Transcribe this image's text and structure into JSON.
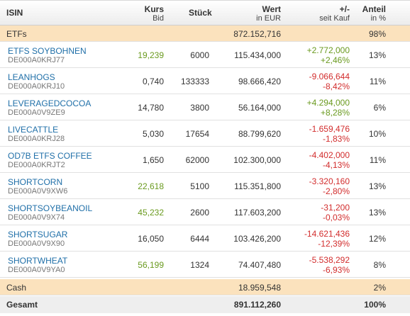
{
  "header": {
    "isin": "ISIN",
    "kurs": "Kurs",
    "kurs_sub": "Bid",
    "stueck": "Stück",
    "wert": "Wert",
    "wert_sub": "in EUR",
    "pm": "+/-",
    "pm_sub": "seit Kauf",
    "anteil": "Anteil",
    "anteil_sub": "in %"
  },
  "etf_section": {
    "label": "ETFs",
    "wert": "872.152,716",
    "anteil": "98%"
  },
  "rows": [
    {
      "name": "ETFS SOYBOHNEN",
      "isin": "DE000A0KRJ77",
      "kurs": "19,239",
      "kurs_trend": "pos",
      "stueck": "6000",
      "wert": "115.434,000",
      "pm_abs": "+2.772,000",
      "pm_pct": "+2,46%",
      "pm_trend": "pos",
      "anteil": "13%"
    },
    {
      "name": "LEANHOGS",
      "isin": "DE000A0KRJ10",
      "kurs": "0,740",
      "kurs_trend": "none",
      "stueck": "133333",
      "wert": "98.666,420",
      "pm_abs": "-9.066,644",
      "pm_pct": "-8,42%",
      "pm_trend": "neg",
      "anteil": "11%"
    },
    {
      "name": "LEVERAGEDCOCOA",
      "isin": "DE000A0V9ZE9",
      "kurs": "14,780",
      "kurs_trend": "none",
      "stueck": "3800",
      "wert": "56.164,000",
      "pm_abs": "+4.294,000",
      "pm_pct": "+8,28%",
      "pm_trend": "pos",
      "anteil": "6%"
    },
    {
      "name": "LIVECATTLE",
      "isin": "DE000A0KRJ28",
      "kurs": "5,030",
      "kurs_trend": "none",
      "stueck": "17654",
      "wert": "88.799,620",
      "pm_abs": "-1.659,476",
      "pm_pct": "-1,83%",
      "pm_trend": "neg",
      "anteil": "10%"
    },
    {
      "name": "OD7B ETFS COFFEE",
      "isin": "DE000A0KRJT2",
      "kurs": "1,650",
      "kurs_trend": "none",
      "stueck": "62000",
      "wert": "102.300,000",
      "pm_abs": "-4.402,000",
      "pm_pct": "-4,13%",
      "pm_trend": "neg",
      "anteil": "11%"
    },
    {
      "name": "SHORTCORN",
      "isin": "DE000A0V9XW6",
      "kurs": "22,618",
      "kurs_trend": "pos",
      "stueck": "5100",
      "wert": "115.351,800",
      "pm_abs": "-3.320,160",
      "pm_pct": "-2,80%",
      "pm_trend": "neg",
      "anteil": "13%"
    },
    {
      "name": "SHORTSOYBEANOIL",
      "isin": "DE000A0V9X74",
      "kurs": "45,232",
      "kurs_trend": "pos",
      "stueck": "2600",
      "wert": "117.603,200",
      "pm_abs": "-31,200",
      "pm_pct": "-0,03%",
      "pm_trend": "neg",
      "anteil": "13%"
    },
    {
      "name": "SHORTSUGAR",
      "isin": "DE000A0V9X90",
      "kurs": "16,050",
      "kurs_trend": "none",
      "stueck": "6444",
      "wert": "103.426,200",
      "pm_abs": "-14.621,436",
      "pm_pct": "-12,39%",
      "pm_trend": "neg",
      "anteil": "12%"
    },
    {
      "name": "SHORTWHEAT",
      "isin": "DE000A0V9YA0",
      "kurs": "56,199",
      "kurs_trend": "pos",
      "stueck": "1324",
      "wert": "74.407,480",
      "pm_abs": "-5.538,292",
      "pm_pct": "-6,93%",
      "pm_trend": "neg",
      "anteil": "8%"
    }
  ],
  "cash": {
    "label": "Cash",
    "wert": "18.959,548",
    "anteil": "2%"
  },
  "total": {
    "label": "Gesamt",
    "wert": "891.112,260",
    "anteil": "100%"
  },
  "colors": {
    "positive": "#6a9a1f",
    "negative": "#d22d2d",
    "link": "#1f6fa8",
    "section_bg": "#fbe2bd"
  }
}
